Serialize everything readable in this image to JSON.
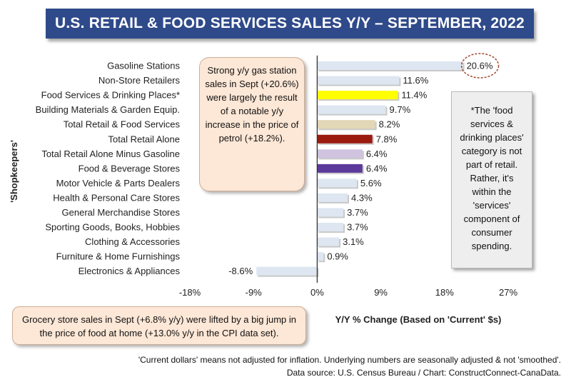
{
  "chart_data": {
    "type": "bar",
    "orientation": "horizontal",
    "title": "U.S. RETAIL & FOOD SERVICES SALES Y/Y – SEPTEMBER, 2022",
    "xlabel": "Y/Y % Change (Based  on 'Current' $s)",
    "ylabel": "'Shopkeepers'",
    "xlim": [
      -18,
      27
    ],
    "xticks": [
      -18,
      -9,
      0,
      9,
      18,
      27
    ],
    "xtick_labels": [
      "-18%",
      "-9%",
      "0%",
      "9%",
      "18%",
      "27%"
    ],
    "categories": [
      "Gasoline Stations",
      "Non-Store Retailers",
      "Food Services & Drinking Places*",
      "Building Materials & Garden Equip.",
      "Total Retail & Food Services",
      "Total Retail Alone",
      "Total Retail Alone Minus Gasoline",
      "Food & Beverage Stores",
      "Motor Vehicle & Parts Dealers",
      "Health & Personal Care Stores",
      "General Merchandise Stores",
      "Sporting Goods, Books, Hobbies",
      "Clothing & Accessories",
      "Furniture & Home Furnishings",
      "Electronics & Appliances"
    ],
    "values": [
      20.6,
      11.6,
      11.4,
      9.7,
      8.2,
      7.8,
      6.4,
      6.4,
      5.6,
      4.3,
      3.7,
      3.7,
      3.1,
      0.9,
      -8.6
    ],
    "value_labels": [
      "20.6%",
      "11.6%",
      "11.4%",
      "9.7%",
      "8.2%",
      "7.8%",
      "6.4%",
      "6.4%",
      "5.6%",
      "4.3%",
      "3.7%",
      "3.7%",
      "3.1%",
      "0.9%",
      "-8.6%"
    ],
    "bar_colors": [
      "#dde6f1",
      "#dde6f1",
      "#ffff00",
      "#dde6f1",
      "#e2d7b6",
      "#9b1b0f",
      "#cfc3df",
      "#5b3a9c",
      "#dde6f1",
      "#dde6f1",
      "#dde6f1",
      "#dde6f1",
      "#dde6f1",
      "#dde6f1",
      "#dde6f1"
    ],
    "highlighted_label_index": 0,
    "grid": false,
    "legend": "none"
  },
  "callouts": {
    "gas": "Strong y/y gas station sales in Sept (+20.6%) were largely the result of a notable y/y increase in the price of petrol (+18.2%).",
    "food_note": "*The 'food services & drinking places' category is not part of retail. Rather, it's within the 'services' component of consumer spending.",
    "grocery": "Grocery store sales in Sept (+6.8% y/y) were lifted by a big jump in the price of food at home (+13.0% y/y in the CPI data set)."
  },
  "footnotes": {
    "line1": "'Current dollars' means not adjusted for inflation. Underlying numbers are seasonally adjusted & not 'smoothed'.",
    "line2": "Data source: U.S. Census Bureau / Chart: ConstructConnect-CanaData."
  },
  "colors": {
    "title_bg": "#2f4a8a",
    "callout_bg": "#fde7d6",
    "note_bg": "#eeeeee",
    "highlight_circle": "#a0482a"
  }
}
